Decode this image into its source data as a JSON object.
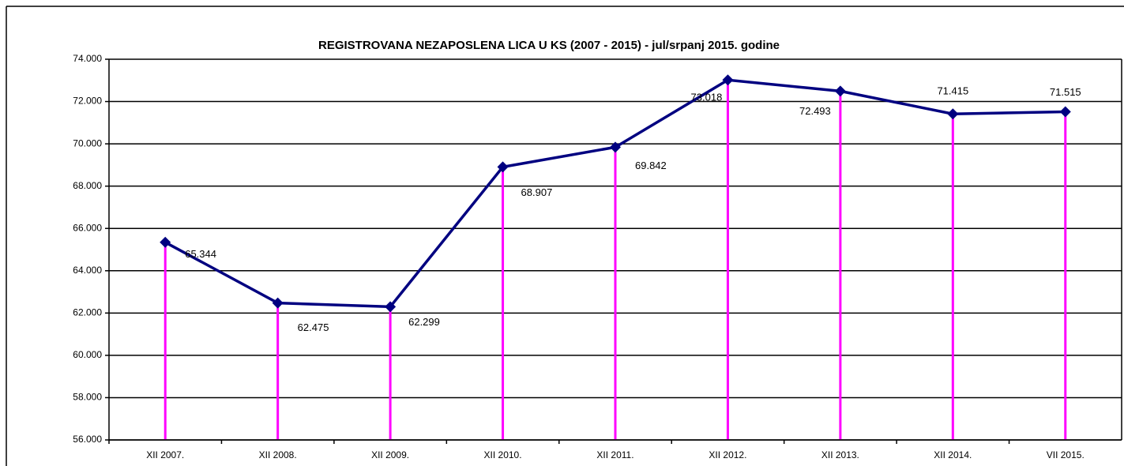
{
  "chart_data": {
    "type": "line",
    "title": "REGISTROVANA NEZAPOSLENA LICA U KS  (2007 - 2015) - jul/srpanj 2015. godine",
    "categories": [
      "XII 2007.",
      "XII 2008.",
      "XII 2009.",
      "XII 2010.",
      "XII 2011.",
      "XII  2012.",
      "XII 2013.",
      "XII 2014.",
      "VII 2015."
    ],
    "values": [
      65344,
      62475,
      62299,
      68907,
      69842,
      73018,
      72493,
      71415,
      71515
    ],
    "value_labels": [
      "65.344",
      "62.475",
      "62.299",
      "68.907",
      "69.842",
      "73.018",
      "72.493",
      "71.415",
      "71.515"
    ],
    "color": "#000080",
    "drop_line_color": "#ff00ff",
    "ylim": [
      56000,
      74000
    ],
    "yticks": [
      {
        "value": 56000,
        "label": "56.000"
      },
      {
        "value": 58000,
        "label": "58.000"
      },
      {
        "value": 60000,
        "label": "60.000"
      },
      {
        "value": 62000,
        "label": "62.000"
      },
      {
        "value": 64000,
        "label": "64.000"
      },
      {
        "value": 66000,
        "label": "66.000"
      },
      {
        "value": 68000,
        "label": "68.000"
      },
      {
        "value": 70000,
        "label": "70.000"
      },
      {
        "value": 72000,
        "label": "72.000"
      },
      {
        "value": 74000,
        "label": "74.000"
      }
    ],
    "grid": true
  }
}
